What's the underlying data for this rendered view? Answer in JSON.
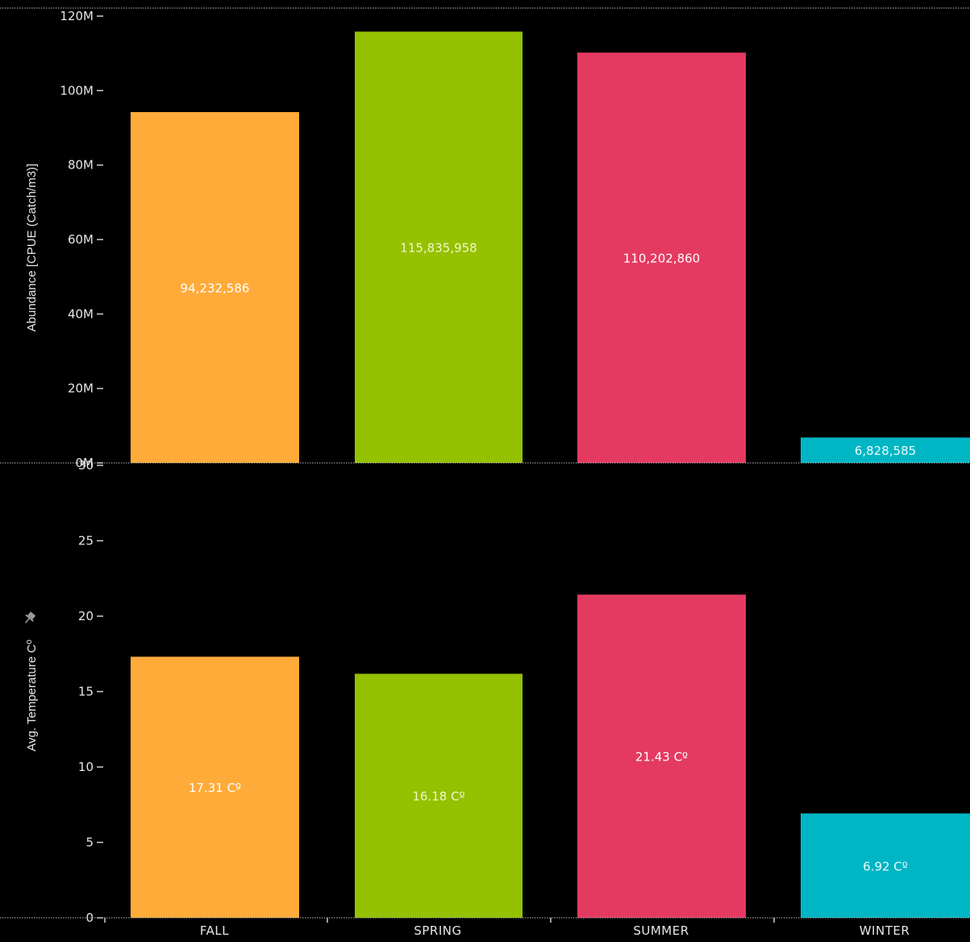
{
  "chart_data": [
    {
      "type": "bar",
      "panel": "top",
      "ylabel": "Abundance [CPUE (Catch/m3)]",
      "ylim": [
        0,
        120000000
      ],
      "yticks": [
        {
          "value": 0,
          "label": "0M"
        },
        {
          "value": 20000000,
          "label": "20M"
        },
        {
          "value": 40000000,
          "label": "40M"
        },
        {
          "value": 60000000,
          "label": "60M"
        },
        {
          "value": 80000000,
          "label": "80M"
        },
        {
          "value": 100000000,
          "label": "100M"
        },
        {
          "value": 120000000,
          "label": "120M"
        }
      ],
      "categories": [
        "FALL",
        "SPRING",
        "SUMMER",
        "WINTER"
      ],
      "values": [
        94232586,
        115835958,
        110202860,
        6828585
      ],
      "data_labels": [
        "94,232,586",
        "115,835,958",
        "110,202,860",
        "6,828,585"
      ],
      "grid": false
    },
    {
      "type": "bar",
      "panel": "bottom",
      "ylabel": "Avg. Temperature Cº",
      "ylim": [
        0,
        30
      ],
      "yticks": [
        {
          "value": 0,
          "label": "0"
        },
        {
          "value": 5,
          "label": "5"
        },
        {
          "value": 10,
          "label": "10"
        },
        {
          "value": 15,
          "label": "15"
        },
        {
          "value": 20,
          "label": "20"
        },
        {
          "value": 25,
          "label": "25"
        },
        {
          "value": 30,
          "label": "30"
        }
      ],
      "categories": [
        "FALL",
        "SPRING",
        "SUMMER",
        "WINTER"
      ],
      "values": [
        17.31,
        16.18,
        21.43,
        6.92
      ],
      "data_labels": [
        "17.31 Cº",
        "16.18 Cº",
        "21.43 Cº",
        "6.92 Cº"
      ],
      "grid": false
    }
  ],
  "colors": {
    "background": "#000000",
    "fall": "#ffab3a",
    "spring": "#94c100",
    "summer": "#e43a61",
    "winter": "#00b5c4",
    "text": "#e6e6e6",
    "label_on_fall": "#ffffff",
    "label_on_spring": "#f2f7c8",
    "label_on_summer": "#ffffff",
    "label_on_winter": "#e8fbfd"
  },
  "icons": {
    "pin": "pin-icon"
  }
}
